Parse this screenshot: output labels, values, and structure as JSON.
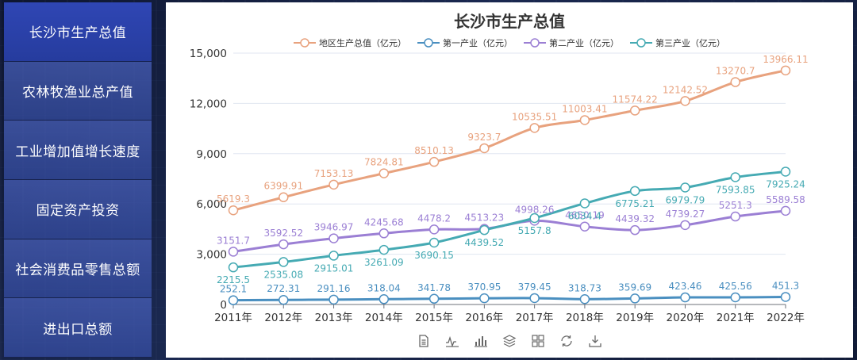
{
  "sidebar": {
    "items": [
      {
        "label": "长沙市生产总值",
        "active": true
      },
      {
        "label": "农林牧渔业总产值",
        "active": false
      },
      {
        "label": "工业增加值增长速度",
        "active": false
      },
      {
        "label": "固定资产投资",
        "active": false
      },
      {
        "label": "社会消费品零售总额",
        "active": false
      },
      {
        "label": "进出口总额",
        "active": false
      }
    ]
  },
  "toolbox": [
    "data-view-icon",
    "line-chart-icon",
    "bar-chart-icon",
    "stack-icon",
    "tiled-icon",
    "restore-icon",
    "save-image-icon"
  ],
  "chart_data": {
    "type": "line",
    "title": "长沙市生产总值",
    "xlabel": "",
    "ylabel": "",
    "categories": [
      "2011年",
      "2012年",
      "2013年",
      "2014年",
      "2015年",
      "2016年",
      "2017年",
      "2018年",
      "2019年",
      "2020年",
      "2021年",
      "2022年"
    ],
    "ylim": [
      0,
      15000
    ],
    "yticks": [
      "0",
      "3,000",
      "6,000",
      "9,000",
      "12,000",
      "15,000"
    ],
    "legend_position": "top",
    "grid": true,
    "smooth": true,
    "series": [
      {
        "name": "地区生产总值（亿元）",
        "color": "#e8a27e",
        "label_position": "above",
        "values": [
          5619.3,
          6399.91,
          7153.13,
          7824.81,
          8510.13,
          9323.7,
          10535.51,
          11003.41,
          11574.22,
          12142.52,
          13270.7,
          13966.11
        ]
      },
      {
        "name": "第一产业（亿元）",
        "color": "#4a8fc0",
        "label_position": "above",
        "values": [
          252.1,
          272.31,
          291.16,
          318.04,
          341.78,
          370.95,
          379.45,
          318.73,
          359.69,
          423.46,
          425.56,
          451.3
        ]
      },
      {
        "name": "第二产业（亿元）",
        "color": "#9b7fd4",
        "label_position": "above",
        "values": [
          3151.7,
          3592.52,
          3946.97,
          4245.68,
          4478.2,
          4513.23,
          4998.26,
          4650.19,
          4439.32,
          4739.27,
          5251.3,
          5589.58
        ]
      },
      {
        "name": "第三产业（亿元）",
        "color": "#45aab3",
        "label_position": "below",
        "values": [
          2215.5,
          2535.08,
          2915.01,
          3261.09,
          3690.15,
          4439.52,
          5157.8,
          6034.4,
          6775.21,
          6979.79,
          7593.85,
          7925.24
        ]
      }
    ]
  }
}
